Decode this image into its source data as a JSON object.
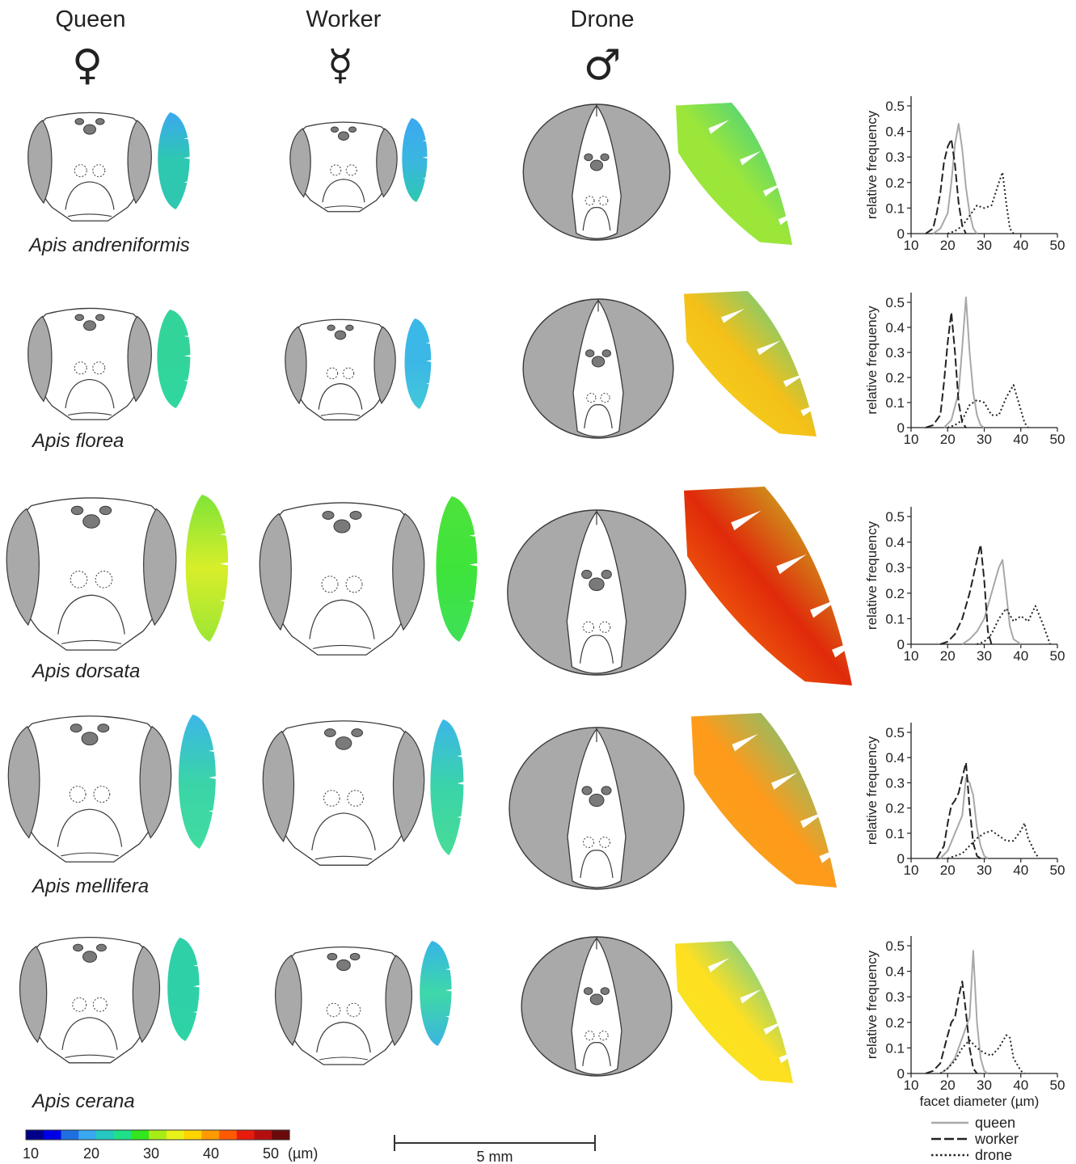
{
  "figure": {
    "castes": [
      {
        "name": "Queen",
        "symbol": "♀"
      },
      {
        "name": "Worker",
        "symbol": "☿"
      },
      {
        "name": "Drone",
        "symbol": "♂"
      }
    ],
    "species": [
      "Apis andreniformis",
      "Apis florea",
      "Apis dorsata",
      "Apis mellifera",
      "Apis cerana"
    ],
    "colorbar": {
      "ticks": [
        "10",
        "20",
        "30",
        "40",
        "50"
      ],
      "unit": "(µm)",
      "colors": [
        "#00008b",
        "#0000e6",
        "#1e6fe0",
        "#38a8f0",
        "#25c8c0",
        "#1ee088",
        "#33e61e",
        "#a8ec16",
        "#e8f218",
        "#ffd400",
        "#ff9a00",
        "#ff5a00",
        "#e81c0c",
        "#b40f0f",
        "#6a0a0a"
      ]
    },
    "scalebar": {
      "label": "5 mm"
    },
    "eye_map_colors": {
      "andreniformis": [
        "#3aa8f0",
        "#2ec8b0",
        "#9ce63a"
      ],
      "florea": [
        "#3ab8e8",
        "#33d49a",
        "#c6ec2a"
      ],
      "dorsata": [
        "#8ee83a",
        "#3ee43a",
        "#e02a0a"
      ],
      "mellifera": [
        "#3cb6e8",
        "#3ad4a8",
        "#ff9a1a"
      ],
      "cerana": [
        "#2ed0a8",
        "#36b4e8",
        "#ffe020"
      ]
    }
  },
  "chart_data": [
    {
      "type": "line",
      "species": "Apis andreniformis",
      "xlabel": "",
      "ylabel": "relative frequency",
      "xlim": [
        10,
        50
      ],
      "ylim": [
        0,
        0.5
      ],
      "xticks": [
        "10",
        "20",
        "30",
        "40",
        "50"
      ],
      "yticks": [
        "0",
        "0.1",
        "0.2",
        "0.3",
        "0.4",
        "0.5"
      ],
      "series": [
        {
          "name": "queen",
          "x": [
            16,
            18,
            20,
            21,
            22,
            23,
            24,
            25,
            26,
            27,
            28
          ],
          "y": [
            0,
            0.02,
            0.08,
            0.2,
            0.35,
            0.43,
            0.33,
            0.18,
            0.08,
            0.02,
            0
          ]
        },
        {
          "name": "worker",
          "x": [
            14,
            16,
            17,
            18,
            19,
            20,
            21,
            22,
            23,
            24,
            25
          ],
          "y": [
            0,
            0.02,
            0.08,
            0.16,
            0.28,
            0.34,
            0.37,
            0.27,
            0.12,
            0.03,
            0
          ]
        },
        {
          "name": "drone",
          "x": [
            20,
            22,
            24,
            26,
            28,
            30,
            32,
            34,
            35,
            36,
            37,
            38
          ],
          "y": [
            0,
            0.01,
            0.03,
            0.07,
            0.11,
            0.1,
            0.11,
            0.2,
            0.24,
            0.12,
            0.02,
            0
          ]
        }
      ]
    },
    {
      "type": "line",
      "species": "Apis florea",
      "xlabel": "",
      "ylabel": "relative frequency",
      "xlim": [
        10,
        50
      ],
      "ylim": [
        0,
        0.5
      ],
      "xticks": [
        "10",
        "20",
        "30",
        "40",
        "50"
      ],
      "yticks": [
        "0",
        "0.1",
        "0.2",
        "0.3",
        "0.4",
        "0.5"
      ],
      "series": [
        {
          "name": "queen",
          "x": [
            19,
            21,
            23,
            24,
            25,
            26,
            27,
            28,
            29,
            30
          ],
          "y": [
            0,
            0.03,
            0.14,
            0.32,
            0.52,
            0.3,
            0.14,
            0.05,
            0.01,
            0
          ]
        },
        {
          "name": "worker",
          "x": [
            14,
            16,
            18,
            19,
            20,
            21,
            22,
            23,
            24,
            25
          ],
          "y": [
            0,
            0.01,
            0.05,
            0.18,
            0.34,
            0.46,
            0.3,
            0.1,
            0.02,
            0
          ]
        },
        {
          "name": "drone",
          "x": [
            20,
            22,
            24,
            26,
            28,
            30,
            32,
            34,
            36,
            38,
            40,
            41,
            42
          ],
          "y": [
            0,
            0.01,
            0.03,
            0.09,
            0.11,
            0.1,
            0.05,
            0.05,
            0.12,
            0.17,
            0.07,
            0.02,
            0
          ]
        }
      ]
    },
    {
      "type": "line",
      "species": "Apis dorsata",
      "xlabel": "",
      "ylabel": "relative frequency",
      "xlim": [
        10,
        50
      ],
      "ylim": [
        0,
        0.5
      ],
      "xticks": [
        "10",
        "20",
        "30",
        "40",
        "50"
      ],
      "yticks": [
        "0",
        "0.1",
        "0.2",
        "0.3",
        "0.4",
        "0.5"
      ],
      "series": [
        {
          "name": "queen",
          "x": [
            24,
            26,
            28,
            30,
            32,
            34,
            35,
            36,
            37,
            38,
            40
          ],
          "y": [
            0,
            0.02,
            0.05,
            0.1,
            0.2,
            0.3,
            0.33,
            0.2,
            0.07,
            0.02,
            0
          ]
        },
        {
          "name": "worker",
          "x": [
            18,
            20,
            22,
            24,
            26,
            28,
            29,
            30,
            31,
            32
          ],
          "y": [
            0,
            0.01,
            0.04,
            0.1,
            0.2,
            0.33,
            0.39,
            0.25,
            0.05,
            0
          ]
        },
        {
          "name": "drone",
          "x": [
            28,
            30,
            32,
            34,
            36,
            38,
            40,
            42,
            44,
            46,
            48
          ],
          "y": [
            0,
            0.01,
            0.04,
            0.1,
            0.14,
            0.09,
            0.11,
            0.09,
            0.15,
            0.08,
            0
          ]
        }
      ]
    },
    {
      "type": "line",
      "species": "Apis mellifera",
      "xlabel": "",
      "ylabel": "relative frequency",
      "xlim": [
        10,
        50
      ],
      "ylim": [
        0,
        0.5
      ],
      "xticks": [
        "10",
        "20",
        "30",
        "40",
        "50"
      ],
      "yticks": [
        "0",
        "0.1",
        "0.2",
        "0.3",
        "0.4",
        "0.5"
      ],
      "series": [
        {
          "name": "queen",
          "x": [
            18,
            20,
            22,
            24,
            25,
            26,
            27,
            28,
            29,
            30,
            31
          ],
          "y": [
            0,
            0.03,
            0.1,
            0.17,
            0.32,
            0.3,
            0.25,
            0.12,
            0.05,
            0.01,
            0
          ]
        },
        {
          "name": "worker",
          "x": [
            17,
            19,
            20,
            21,
            22,
            23,
            24,
            25,
            26,
            27,
            28,
            29
          ],
          "y": [
            0,
            0.05,
            0.14,
            0.21,
            0.23,
            0.26,
            0.32,
            0.38,
            0.2,
            0.06,
            0.01,
            0
          ]
        },
        {
          "name": "drone",
          "x": [
            20,
            22,
            24,
            26,
            28,
            30,
            32,
            34,
            36,
            38,
            40,
            41,
            42,
            44,
            45
          ],
          "y": [
            0,
            0.01,
            0.02,
            0.05,
            0.08,
            0.1,
            0.11,
            0.09,
            0.07,
            0.07,
            0.11,
            0.14,
            0.08,
            0.02,
            0
          ]
        }
      ]
    },
    {
      "type": "line",
      "species": "Apis cerana",
      "xlabel": "facet diameter (µm)",
      "ylabel": "relative frequency",
      "xlim": [
        10,
        50
      ],
      "ylim": [
        0,
        0.5
      ],
      "xticks": [
        "10",
        "20",
        "30",
        "40",
        "50"
      ],
      "yticks": [
        "0",
        "0.1",
        "0.2",
        "0.3",
        "0.4",
        "0.5"
      ],
      "series": [
        {
          "name": "queen",
          "x": [
            18,
            20,
            22,
            24,
            26,
            27,
            28,
            29,
            30,
            31
          ],
          "y": [
            0,
            0.02,
            0.06,
            0.14,
            0.22,
            0.48,
            0.2,
            0.06,
            0.01,
            0
          ]
        },
        {
          "name": "worker",
          "x": [
            14,
            16,
            18,
            20,
            21,
            22,
            23,
            24,
            25,
            26,
            27,
            28
          ],
          "y": [
            0,
            0.01,
            0.04,
            0.15,
            0.2,
            0.22,
            0.3,
            0.36,
            0.24,
            0.1,
            0.02,
            0
          ]
        },
        {
          "name": "drone",
          "x": [
            18,
            20,
            22,
            24,
            26,
            28,
            30,
            32,
            34,
            36,
            37,
            38,
            40,
            41
          ],
          "y": [
            0,
            0.02,
            0.05,
            0.1,
            0.13,
            0.1,
            0.08,
            0.07,
            0.1,
            0.15,
            0.14,
            0.06,
            0.01,
            0
          ]
        }
      ]
    }
  ],
  "legend": {
    "entries": [
      "queen",
      "worker",
      "drone"
    ],
    "colors": {
      "queen": "#a8a8a8",
      "worker": "#222222",
      "drone": "#222222"
    }
  }
}
